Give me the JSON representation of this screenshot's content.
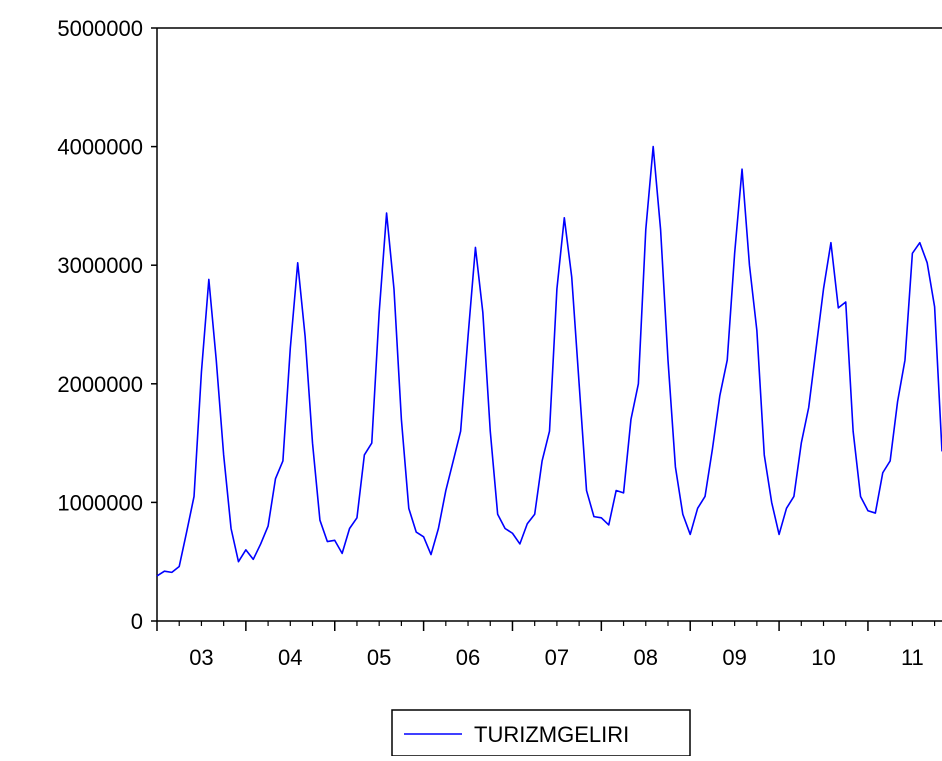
{
  "chart_data": {
    "type": "line",
    "title": "",
    "xlabel": "",
    "ylabel": "",
    "ylim": [
      0,
      5000000
    ],
    "y_ticks": [
      0,
      1000000,
      2000000,
      3000000,
      4000000,
      5000000
    ],
    "y_tick_labels": [
      "0",
      "1000000",
      "2000000",
      "3000000",
      "4000000",
      "5000000"
    ],
    "x_unit": "year (monthly observations, 2003-2011)",
    "xlim": [
      2003.0,
      2011.8333
    ],
    "x_year_labels": [
      "03",
      "04",
      "05",
      "06",
      "07",
      "08",
      "09",
      "10",
      "11"
    ],
    "x_year_label_positions": [
      2003.5,
      2004.5,
      2005.5,
      2006.5,
      2007.5,
      2008.5,
      2009.5,
      2010.5,
      2011.5
    ],
    "legend_position": "bottom-center",
    "grid": false,
    "colors": {
      "series": "#0000ff",
      "axis": "#000000",
      "background": "#ffffff"
    },
    "series": [
      {
        "name": "TURIZMGELIRI",
        "start": "2003-01",
        "frequency": "monthly",
        "values": [
          380000,
          420000,
          410000,
          460000,
          750000,
          1050000,
          2100000,
          2880000,
          2200000,
          1400000,
          780000,
          500000,
          600000,
          520000,
          650000,
          800000,
          1200000,
          1350000,
          2300000,
          3020000,
          2400000,
          1500000,
          850000,
          670000,
          680000,
          570000,
          780000,
          870000,
          1400000,
          1500000,
          2600000,
          3440000,
          2800000,
          1700000,
          950000,
          750000,
          710000,
          560000,
          780000,
          1100000,
          1350000,
          1600000,
          2400000,
          3150000,
          2600000,
          1600000,
          900000,
          780000,
          740000,
          650000,
          820000,
          900000,
          1350000,
          1600000,
          2800000,
          3400000,
          2900000,
          2000000,
          1100000,
          880000,
          870000,
          810000,
          1100000,
          1080000,
          1700000,
          2000000,
          3300000,
          4000000,
          3300000,
          2200000,
          1300000,
          900000,
          730000,
          950000,
          1050000,
          1450000,
          1900000,
          2200000,
          3100000,
          3810000,
          3000000,
          2450000,
          1400000,
          1000000,
          730000,
          950000,
          1050000,
          1500000,
          1800000,
          2300000,
          2800000,
          3190000,
          2640000,
          2690000,
          1600000,
          1050000,
          930000,
          910000,
          1250000,
          1350000,
          1850000,
          2200000,
          3100000,
          3190000,
          3020000,
          2650000,
          1430000
        ]
      }
    ]
  }
}
